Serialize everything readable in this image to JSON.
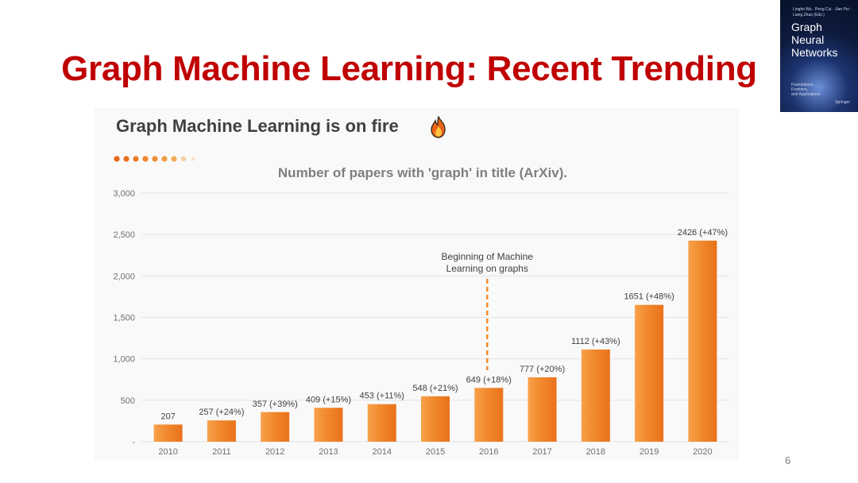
{
  "slide": {
    "title": "Graph Machine Learning: Recent Trending",
    "page_number": "6"
  },
  "book_cover": {
    "authors": "Lingfei Wu · Peng Cui · Jian Pei · Liang Zhao (Eds.)",
    "title_line1": "Graph Neural",
    "title_line2": "Networks",
    "subtitle_line1": "Foundations,",
    "subtitle_line2": "Frontiers,",
    "subtitle_line3": "and Applications",
    "publisher": "Springer"
  },
  "panel": {
    "headline": "Graph Machine Learning is on fire"
  },
  "chart_data": {
    "type": "bar",
    "title": "Number of papers with 'graph' in title (ArXiv).",
    "xlabel": "",
    "ylabel": "",
    "ylim": [
      0,
      3000
    ],
    "yticks": [
      0,
      500,
      1000,
      1500,
      2000,
      2500,
      3000
    ],
    "ytick_labels": [
      "-",
      "500",
      "1,000",
      "1,500",
      "2,000",
      "2,500",
      "3,000"
    ],
    "categories": [
      "2010",
      "2011",
      "2012",
      "2013",
      "2014",
      "2015",
      "2016",
      "2017",
      "2018",
      "2019",
      "2020"
    ],
    "values": [
      207,
      257,
      357,
      409,
      453,
      548,
      649,
      777,
      1112,
      1651,
      2426
    ],
    "data_labels": [
      "207",
      "257 (+24%)",
      "357 (+39%)",
      "409 (+15%)",
      "453 (+11%)",
      "548 (+21%)",
      "649 (+18%)",
      "777 (+20%)",
      "1112 (+43%)",
      "1651 (+48%)",
      "2426 (+47%)"
    ],
    "grid": true,
    "annotation": {
      "text_line1": "Beginning of Machine",
      "text_line2": "Learning on graphs",
      "category": "2016"
    },
    "bar_color": "#f0862a"
  }
}
